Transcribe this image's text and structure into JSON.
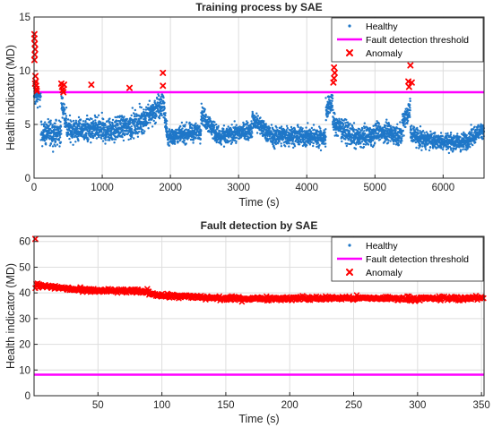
{
  "chart_data": [
    {
      "type": "scatter",
      "title": "Training process by SAE",
      "xlabel": "Time (s)",
      "ylabel": "Health indicator (MD)",
      "xlim": [
        0,
        6600
      ],
      "ylim": [
        0,
        15
      ],
      "xticks": [
        0,
        1000,
        2000,
        3000,
        4000,
        5000,
        6000
      ],
      "yticks": [
        0,
        5,
        10,
        15
      ],
      "grid": true,
      "legend_position": "top-right",
      "legend": [
        "Healthy",
        "Fault detection threshold",
        "Anomaly"
      ],
      "series": [
        {
          "name": "Healthy",
          "kind": "points",
          "color": "#1f77c8",
          "n_points": 6600,
          "segments": [
            {
              "x": [
                0,
                100
              ],
              "y": [
                8.0,
                8.0
              ],
              "spread": 1.2
            },
            {
              "x": [
                100,
                400
              ],
              "y": [
                4.2,
                4.2
              ],
              "spread": 1.0
            },
            {
              "x": [
                400,
                480
              ],
              "y": [
                7.2,
                5.0
              ],
              "spread": 0.9
            },
            {
              "x": [
                480,
                1000
              ],
              "y": [
                4.5,
                4.5
              ],
              "spread": 1.0
            },
            {
              "x": [
                1000,
                1500
              ],
              "y": [
                4.3,
                5.0
              ],
              "spread": 1.0
            },
            {
              "x": [
                1500,
                1880
              ],
              "y": [
                5.0,
                6.8
              ],
              "spread": 1.1
            },
            {
              "x": [
                1880,
                1960
              ],
              "y": [
                7.8,
                3.6
              ],
              "spread": 0.9
            },
            {
              "x": [
                1960,
                2450
              ],
              "y": [
                3.8,
                4.4
              ],
              "spread": 0.7
            },
            {
              "x": [
                2450,
                2750
              ],
              "y": [
                6.0,
                3.5
              ],
              "spread": 0.8
            },
            {
              "x": [
                2750,
                3200
              ],
              "y": [
                3.9,
                4.5
              ],
              "spread": 0.7
            },
            {
              "x": [
                3200,
                3550
              ],
              "y": [
                5.5,
                3.6
              ],
              "spread": 0.8
            },
            {
              "x": [
                3550,
                4280
              ],
              "y": [
                4.0,
                3.8
              ],
              "spread": 0.8
            },
            {
              "x": [
                4280,
                4380
              ],
              "y": [
                6.3,
                7.2
              ],
              "spread": 0.9
            },
            {
              "x": [
                4380,
                4700
              ],
              "y": [
                5.2,
                3.8
              ],
              "spread": 0.9
            },
            {
              "x": [
                4700,
                5000
              ],
              "y": [
                3.7,
                4.0
              ],
              "spread": 0.8
            },
            {
              "x": [
                5000,
                5400
              ],
              "y": [
                4.4,
                4.0
              ],
              "spread": 0.8
            },
            {
              "x": [
                5400,
                5520
              ],
              "y": [
                5.2,
                6.5
              ],
              "spread": 1.0
            },
            {
              "x": [
                5520,
                5700
              ],
              "y": [
                4.2,
                3.6
              ],
              "spread": 0.8
            },
            {
              "x": [
                5700,
                6300
              ],
              "y": [
                3.6,
                3.3
              ],
              "spread": 0.7
            },
            {
              "x": [
                6300,
                6600
              ],
              "y": [
                3.4,
                4.6
              ],
              "spread": 0.7
            }
          ]
        },
        {
          "name": "Fault detection threshold",
          "kind": "line",
          "color": "#ff00ff",
          "y": 8.0
        },
        {
          "name": "Anomaly",
          "kind": "markers",
          "color": "#ff0000",
          "points": [
            [
              5,
              13.4
            ],
            [
              5,
              13.0
            ],
            [
              10,
              12.5
            ],
            [
              15,
              12.0
            ],
            [
              10,
              11.5
            ],
            [
              5,
              11.0
            ],
            [
              20,
              9.5
            ],
            [
              25,
              9.0
            ],
            [
              30,
              8.6
            ],
            [
              35,
              8.3
            ],
            [
              40,
              8.1
            ],
            [
              15,
              8.8
            ],
            [
              400,
              8.8
            ],
            [
              410,
              8.5
            ],
            [
              420,
              8.2
            ],
            [
              430,
              8.0
            ],
            [
              440,
              8.7
            ],
            [
              840,
              8.7
            ],
            [
              1400,
              8.4
            ],
            [
              1890,
              9.8
            ],
            [
              1890,
              8.6
            ],
            [
              4400,
              10.3
            ],
            [
              4410,
              9.8
            ],
            [
              4400,
              9.3
            ],
            [
              4390,
              8.9
            ],
            [
              5490,
              9.0
            ],
            [
              5500,
              8.5
            ],
            [
              5520,
              10.5
            ],
            [
              5540,
              8.9
            ]
          ]
        }
      ]
    },
    {
      "type": "scatter",
      "title": "Fault detection by SAE",
      "xlabel": "Time (s)",
      "ylabel": "Health indicator (MD)",
      "xlim": [
        0,
        352
      ],
      "ylim": [
        0,
        62
      ],
      "xticks": [
        50,
        100,
        150,
        200,
        250,
        300,
        350
      ],
      "yticks": [
        0,
        10,
        20,
        30,
        40,
        50,
        60
      ],
      "grid": true,
      "legend_position": "top-right",
      "legend": [
        "Healthy",
        "Fault detection threshold",
        "Anomaly"
      ],
      "series": [
        {
          "name": "Healthy",
          "kind": "points",
          "color": "#1f77c8",
          "points": []
        },
        {
          "name": "Fault detection threshold",
          "kind": "line",
          "color": "#ff00ff",
          "y": 8.2
        },
        {
          "name": "Anomaly",
          "kind": "markers",
          "color": "#ff0000",
          "n_points": 352,
          "outliers": [
            [
              1,
              61
            ]
          ],
          "trend": [
            {
              "x": [
                1,
                20
              ],
              "y": [
                43.0,
                42.0
              ]
            },
            {
              "x": [
                20,
                40
              ],
              "y": [
                42.0,
                40.8
              ]
            },
            {
              "x": [
                40,
                90
              ],
              "y": [
                41.0,
                40.5
              ]
            },
            {
              "x": [
                90,
                100
              ],
              "y": [
                40.0,
                39.0
              ]
            },
            {
              "x": [
                100,
                150
              ],
              "y": [
                39.0,
                37.8
              ]
            },
            {
              "x": [
                150,
                250
              ],
              "y": [
                37.8,
                38.0
              ]
            },
            {
              "x": [
                250,
                300
              ],
              "y": [
                38.0,
                37.8
              ]
            },
            {
              "x": [
                300,
                352
              ],
              "y": [
                37.8,
                38.0
              ]
            }
          ],
          "spread": 0.8
        }
      ]
    }
  ]
}
